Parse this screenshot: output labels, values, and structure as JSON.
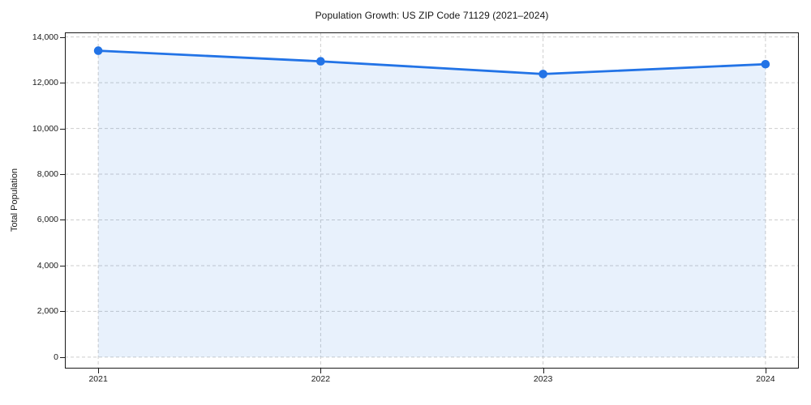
{
  "chart_data": {
    "type": "line",
    "title": "Population Growth: US ZIP Code 71129 (2021–2024)",
    "xlabel": "",
    "ylabel": "Total Population",
    "x": [
      2021,
      2022,
      2023,
      2024
    ],
    "series": [
      {
        "name": "Total Population",
        "values": [
          13400,
          12935,
          12380,
          12810
        ]
      }
    ],
    "area_fill_to": 0,
    "markers": true,
    "grid": true,
    "legend": false,
    "xlim": [
      2020.85,
      2024.15
    ],
    "ylim": [
      -500,
      14200
    ],
    "xticks": {
      "values": [
        2021,
        2022,
        2023,
        2024
      ],
      "labels": [
        "2021",
        "2022",
        "2023",
        "2024"
      ]
    },
    "yticks": {
      "values": [
        0,
        2000,
        4000,
        6000,
        8000,
        10000,
        12000,
        14000
      ],
      "labels": [
        "0",
        "2,000",
        "4,000",
        "6,000",
        "8,000",
        "10,000",
        "12,000",
        "14,000"
      ]
    },
    "colors": {
      "line": "#2273e6",
      "marker": "#2273e6",
      "fill": "rgba(34,115,230,0.10)",
      "grid": "#cdcdcd",
      "spine": "#1a1a1a",
      "tick_label": "#1a1a1a",
      "background": "#ffffff"
    }
  }
}
